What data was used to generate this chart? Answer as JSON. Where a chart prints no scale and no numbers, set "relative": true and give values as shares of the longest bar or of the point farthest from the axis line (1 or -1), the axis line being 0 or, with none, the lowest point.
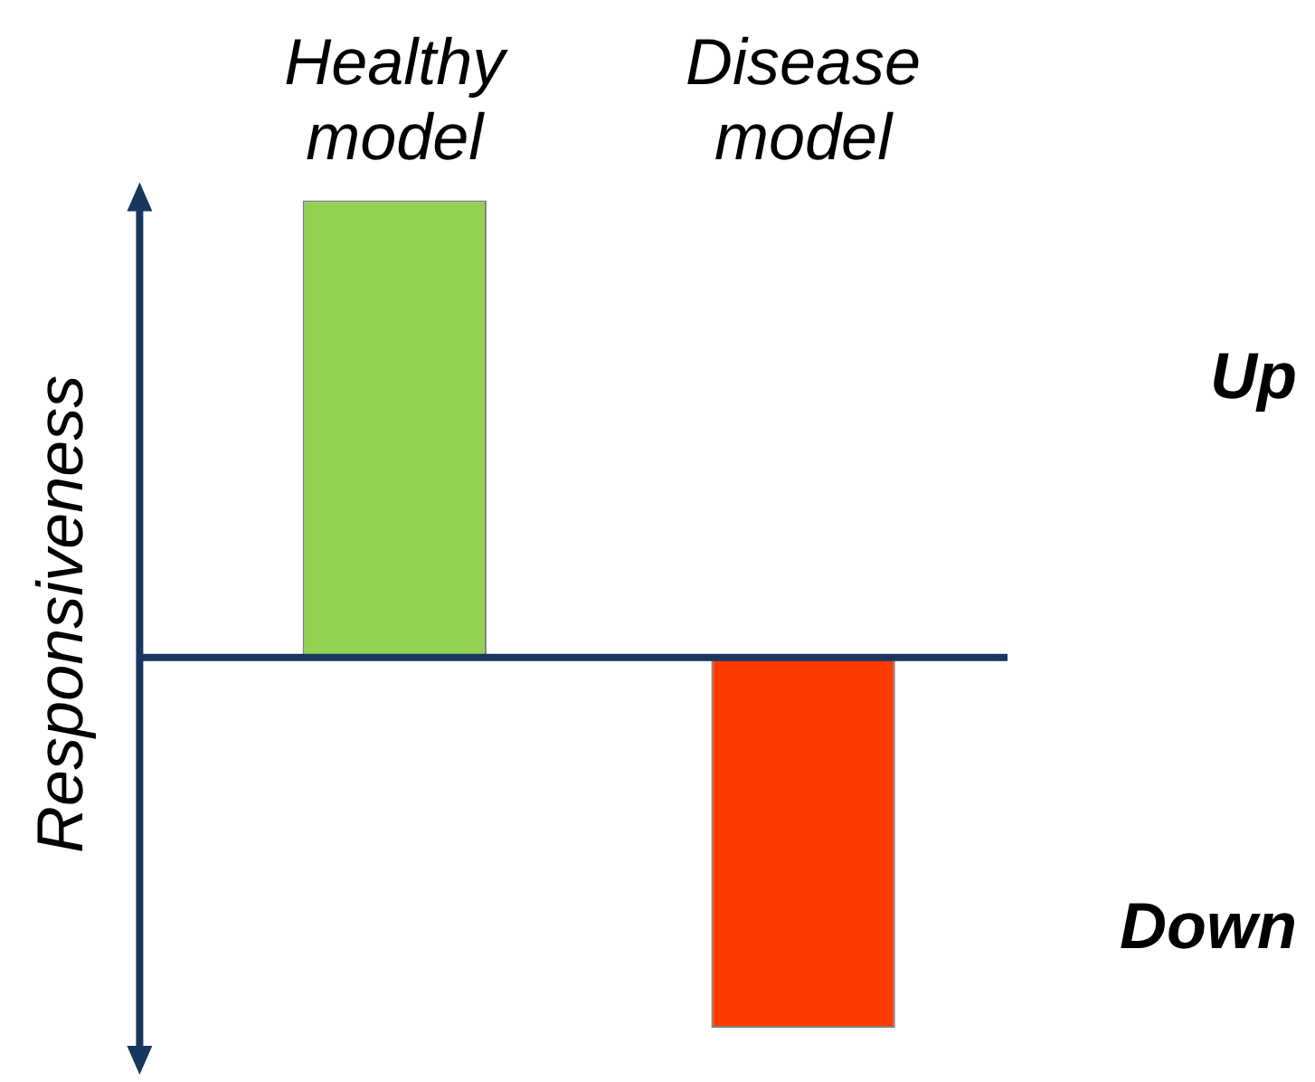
{
  "chart_data": {
    "type": "bar",
    "relative": true,
    "ylabel": "Responsiveness",
    "categories": [
      "Healthy model",
      "Disease model"
    ],
    "values": [
      1,
      -0.81
    ],
    "colors": [
      "#92d050",
      "#ff3c00"
    ],
    "annotations": [
      "Up",
      "Down"
    ],
    "grid": false,
    "legend": false
  }
}
